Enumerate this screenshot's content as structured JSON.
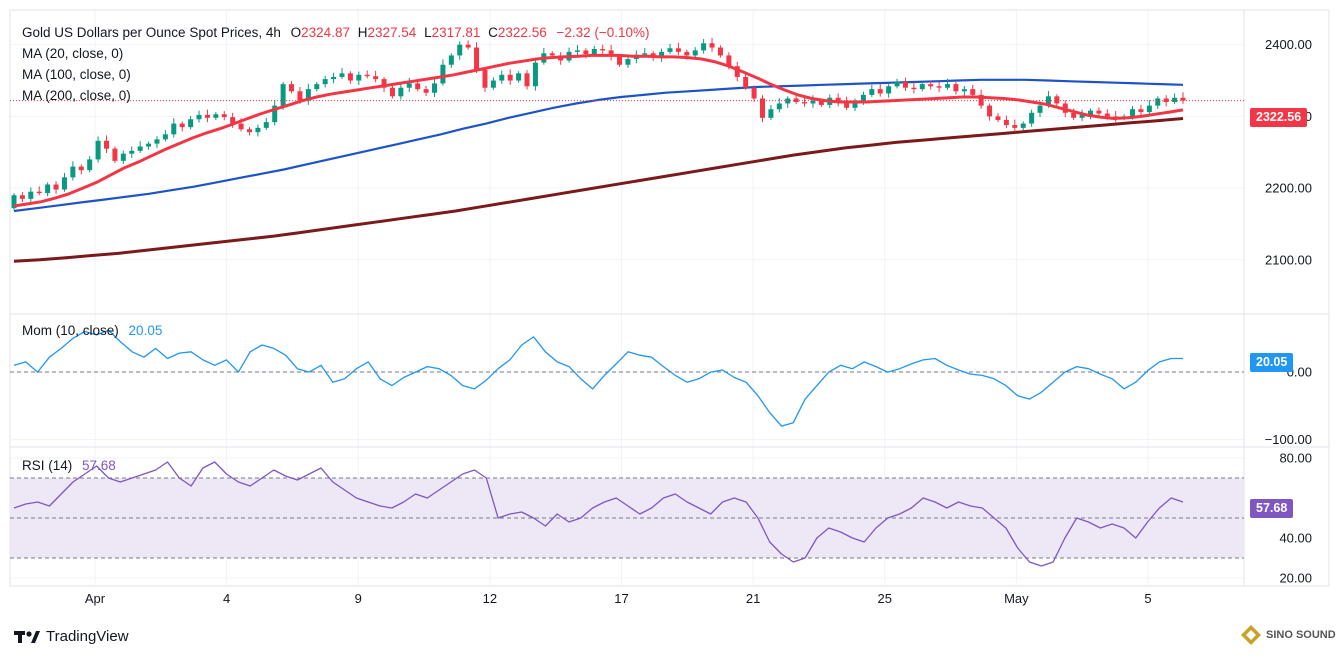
{
  "header": {
    "symbol": "Gold US Dollars per Ounce Spot Prices, 4h",
    "o_label": "O",
    "o": "2324.87",
    "h_label": "H",
    "h": "2327.54",
    "l_label": "L",
    "l": "2317.81",
    "c_label": "C",
    "c": "2322.56",
    "change": "−2.32 (−0.10%)"
  },
  "indicators": {
    "ma20": "MA (20, close, 0)",
    "ma100": "MA (100, close, 0)",
    "ma200": "MA (200, close, 0)",
    "mom": "Mom (10, close)",
    "mom_value": "20.05",
    "rsi": "RSI (14)",
    "rsi_value": "57.68"
  },
  "price_tags": {
    "last_price": "2322.56",
    "mom_last": "20.05",
    "rsi_last": "57.68"
  },
  "branding": {
    "tradingview": "TradingView",
    "watermark": "SINO SOUND"
  },
  "colors": {
    "up": "#089981",
    "down": "#f23645",
    "ma20": "#f23645",
    "ma100": "#1e53c8",
    "ma200": "#7b1a1a",
    "mom": "#2196f3",
    "rsi": "#7e57c2",
    "rsi_band": "#ede7f6"
  },
  "chart_data": [
    {
      "type": "candlestick",
      "title": "Gold US Dollars per Ounce Spot Prices, 4h",
      "ylim": [
        2030,
        2440
      ],
      "y_ticks": [
        "2400.00",
        "2300.00",
        "2200.00",
        "2100.00"
      ],
      "x_ticks": [
        "Apr",
        "4",
        "9",
        "12",
        "17",
        "21",
        "25",
        "May",
        "5"
      ],
      "candles": [
        [
          2172,
          2190
        ],
        [
          2190,
          2185
        ],
        [
          2185,
          2195
        ],
        [
          2195,
          2193
        ],
        [
          2193,
          2205
        ],
        [
          2205,
          2198
        ],
        [
          2198,
          2215
        ],
        [
          2215,
          2230
        ],
        [
          2230,
          2225
        ],
        [
          2225,
          2240
        ],
        [
          2240,
          2266
        ],
        [
          2266,
          2255
        ],
        [
          2255,
          2238
        ],
        [
          2238,
          2248
        ],
        [
          2248,
          2252
        ],
        [
          2252,
          2258
        ],
        [
          2258,
          2262
        ],
        [
          2262,
          2268
        ],
        [
          2268,
          2275
        ],
        [
          2275,
          2290
        ],
        [
          2290,
          2285
        ],
        [
          2285,
          2296
        ],
        [
          2296,
          2302
        ],
        [
          2302,
          2298
        ],
        [
          2298,
          2303
        ],
        [
          2303,
          2299
        ],
        [
          2299,
          2290
        ],
        [
          2290,
          2282
        ],
        [
          2282,
          2278
        ],
        [
          2278,
          2284
        ],
        [
          2284,
          2292
        ],
        [
          2292,
          2315
        ],
        [
          2315,
          2345
        ],
        [
          2345,
          2335
        ],
        [
          2335,
          2322
        ],
        [
          2322,
          2338
        ],
        [
          2338,
          2345
        ],
        [
          2345,
          2352
        ],
        [
          2352,
          2355
        ],
        [
          2355,
          2360
        ],
        [
          2360,
          2350
        ],
        [
          2350,
          2358
        ],
        [
          2358,
          2356
        ],
        [
          2356,
          2352
        ],
        [
          2352,
          2340
        ],
        [
          2340,
          2328
        ],
        [
          2328,
          2340
        ],
        [
          2340,
          2346
        ],
        [
          2346,
          2338
        ],
        [
          2338,
          2333
        ],
        [
          2333,
          2346
        ],
        [
          2346,
          2372
        ],
        [
          2372,
          2385
        ],
        [
          2385,
          2400
        ],
        [
          2400,
          2396
        ],
        [
          2396,
          2365
        ],
        [
          2365,
          2340
        ],
        [
          2340,
          2350
        ],
        [
          2350,
          2358
        ],
        [
          2358,
          2350
        ],
        [
          2350,
          2360
        ],
        [
          2360,
          2342
        ],
        [
          2342,
          2375
        ],
        [
          2375,
          2388
        ],
        [
          2388,
          2385
        ],
        [
          2385,
          2378
        ],
        [
          2378,
          2390
        ],
        [
          2390,
          2392
        ],
        [
          2392,
          2387
        ],
        [
          2387,
          2394
        ],
        [
          2394,
          2392
        ],
        [
          2392,
          2384
        ],
        [
          2384,
          2372
        ],
        [
          2372,
          2380
        ],
        [
          2380,
          2386
        ],
        [
          2386,
          2388
        ],
        [
          2388,
          2382
        ],
        [
          2382,
          2390
        ],
        [
          2390,
          2395
        ],
        [
          2395,
          2390
        ],
        [
          2390,
          2385
        ],
        [
          2385,
          2392
        ],
        [
          2392,
          2402
        ],
        [
          2402,
          2396
        ],
        [
          2396,
          2385
        ],
        [
          2385,
          2370
        ],
        [
          2370,
          2355
        ],
        [
          2355,
          2340
        ],
        [
          2340,
          2325
        ],
        [
          2325,
          2298
        ],
        [
          2298,
          2310
        ],
        [
          2310,
          2318
        ],
        [
          2318,
          2325
        ],
        [
          2325,
          2320
        ],
        [
          2320,
          2318
        ],
        [
          2318,
          2322
        ],
        [
          2322,
          2316
        ],
        [
          2316,
          2326
        ],
        [
          2326,
          2320
        ],
        [
          2320,
          2312
        ],
        [
          2312,
          2322
        ],
        [
          2322,
          2330
        ],
        [
          2330,
          2338
        ],
        [
          2338,
          2332
        ],
        [
          2332,
          2342
        ],
        [
          2342,
          2348
        ],
        [
          2348,
          2340
        ],
        [
          2340,
          2338
        ],
        [
          2338,
          2345
        ],
        [
          2345,
          2342
        ],
        [
          2342,
          2340
        ],
        [
          2340,
          2345
        ],
        [
          2345,
          2335
        ],
        [
          2335,
          2338
        ],
        [
          2338,
          2330
        ],
        [
          2330,
          2315
        ],
        [
          2315,
          2300
        ],
        [
          2300,
          2295
        ],
        [
          2295,
          2288
        ],
        [
          2288,
          2284
        ],
        [
          2284,
          2290
        ],
        [
          2290,
          2305
        ],
        [
          2305,
          2315
        ],
        [
          2315,
          2328
        ],
        [
          2328,
          2318
        ],
        [
          2318,
          2305
        ],
        [
          2305,
          2298
        ],
        [
          2298,
          2302
        ],
        [
          2302,
          2308
        ],
        [
          2308,
          2304
        ],
        [
          2304,
          2300
        ],
        [
          2300,
          2298
        ],
        [
          2298,
          2300
        ],
        [
          2300,
          2310
        ],
        [
          2310,
          2306
        ],
        [
          2306,
          2315
        ],
        [
          2315,
          2325
        ],
        [
          2325,
          2320
        ],
        [
          2320,
          2326
        ],
        [
          2326,
          2322
        ]
      ],
      "series": [
        {
          "name": "MA (20, close, 0)",
          "values": [
            2175,
            2178,
            2181,
            2186,
            2192,
            2200,
            2208,
            2218,
            2228,
            2236,
            2245,
            2254,
            2262,
            2270,
            2277,
            2283,
            2290,
            2297,
            2304,
            2310,
            2316,
            2322,
            2327,
            2331,
            2334,
            2337,
            2340,
            2343,
            2346,
            2349,
            2352,
            2355,
            2358,
            2362,
            2366,
            2370,
            2374,
            2377,
            2380,
            2382,
            2383,
            2384,
            2385,
            2385,
            2385,
            2384,
            2384,
            2383,
            2383,
            2382,
            2380,
            2376,
            2370,
            2362,
            2354,
            2345,
            2337,
            2330,
            2325,
            2322,
            2320,
            2320,
            2320,
            2321,
            2322,
            2323,
            2324,
            2325,
            2326,
            2327,
            2327,
            2326,
            2325,
            2323,
            2320,
            2317,
            2312,
            2307,
            2302,
            2299,
            2297,
            2298,
            2300,
            2303,
            2306,
            2309
          ]
        },
        {
          "name": "MA (100, close, 0)",
          "values": [
            2168,
            2172,
            2176,
            2180,
            2184,
            2188,
            2192,
            2197,
            2202,
            2208,
            2214,
            2220,
            2226,
            2233,
            2240,
            2247,
            2254,
            2261,
            2268,
            2275,
            2283,
            2290,
            2298,
            2305,
            2312,
            2318,
            2323,
            2327,
            2330,
            2333,
            2335,
            2337,
            2339,
            2341,
            2342,
            2343,
            2344,
            2345,
            2346,
            2347,
            2348,
            2349,
            2350,
            2351,
            2351,
            2351,
            2350,
            2349,
            2348,
            2347,
            2346,
            2345,
            2344
          ]
        },
        {
          "name": "MA (200, close, 0)",
          "values": [
            2098,
            2100,
            2103,
            2106,
            2109,
            2113,
            2117,
            2121,
            2125,
            2129,
            2133,
            2138,
            2143,
            2148,
            2153,
            2158,
            2163,
            2168,
            2174,
            2180,
            2186,
            2192,
            2198,
            2204,
            2210,
            2216,
            2222,
            2228,
            2234,
            2240,
            2246,
            2251,
            2256,
            2260,
            2264,
            2267,
            2270,
            2273,
            2276,
            2279,
            2282,
            2285,
            2288,
            2291,
            2294,
            2297
          ]
        }
      ]
    },
    {
      "type": "line",
      "title": "Mom (10, close)",
      "ylim": [
        -105,
        80
      ],
      "y_ticks": [
        "0.00",
        "−100.00"
      ],
      "series": [
        {
          "name": "Mom (10, close)",
          "values": [
            10,
            15,
            0,
            22,
            35,
            50,
            60,
            55,
            62,
            45,
            30,
            22,
            35,
            20,
            28,
            30,
            18,
            10,
            18,
            0,
            30,
            40,
            35,
            25,
            5,
            0,
            10,
            -15,
            -10,
            5,
            15,
            -10,
            -20,
            -8,
            0,
            8,
            5,
            -5,
            -20,
            -25,
            -12,
            5,
            18,
            40,
            52,
            30,
            15,
            8,
            -10,
            -25,
            -5,
            12,
            30,
            25,
            22,
            8,
            -5,
            -15,
            -10,
            0,
            3,
            -8,
            -15,
            -35,
            -60,
            -80,
            -75,
            -40,
            -20,
            0,
            10,
            5,
            15,
            8,
            0,
            5,
            12,
            18,
            20,
            10,
            3,
            -3,
            -5,
            -10,
            -20,
            -35,
            -40,
            -30,
            -15,
            0,
            8,
            5,
            -3,
            -10,
            -25,
            -15,
            2,
            15,
            20,
            20
          ]
        }
      ]
    },
    {
      "type": "line",
      "title": "RSI (14)",
      "ylim": [
        18,
        83
      ],
      "y_ticks": [
        "80.00",
        "40.00",
        "20.00"
      ],
      "bands": [
        30,
        50,
        70
      ],
      "series": [
        {
          "name": "RSI (14)",
          "values": [
            55,
            57,
            58,
            56,
            62,
            68,
            72,
            76,
            70,
            68,
            70,
            72,
            74,
            78,
            70,
            66,
            75,
            78,
            72,
            68,
            66,
            70,
            74,
            71,
            69,
            72,
            75,
            68,
            64,
            60,
            58,
            56,
            55,
            58,
            62,
            60,
            64,
            68,
            72,
            74,
            70,
            50,
            52,
            53,
            50,
            46,
            52,
            48,
            50,
            55,
            58,
            60,
            56,
            52,
            55,
            60,
            62,
            58,
            55,
            52,
            58,
            60,
            58,
            50,
            38,
            32,
            28,
            30,
            40,
            45,
            43,
            40,
            38,
            45,
            50,
            52,
            55,
            60,
            58,
            55,
            58,
            56,
            55,
            50,
            45,
            35,
            28,
            26,
            28,
            40,
            50,
            48,
            45,
            47,
            45,
            40,
            48,
            55,
            60,
            58
          ]
        }
      ]
    }
  ]
}
